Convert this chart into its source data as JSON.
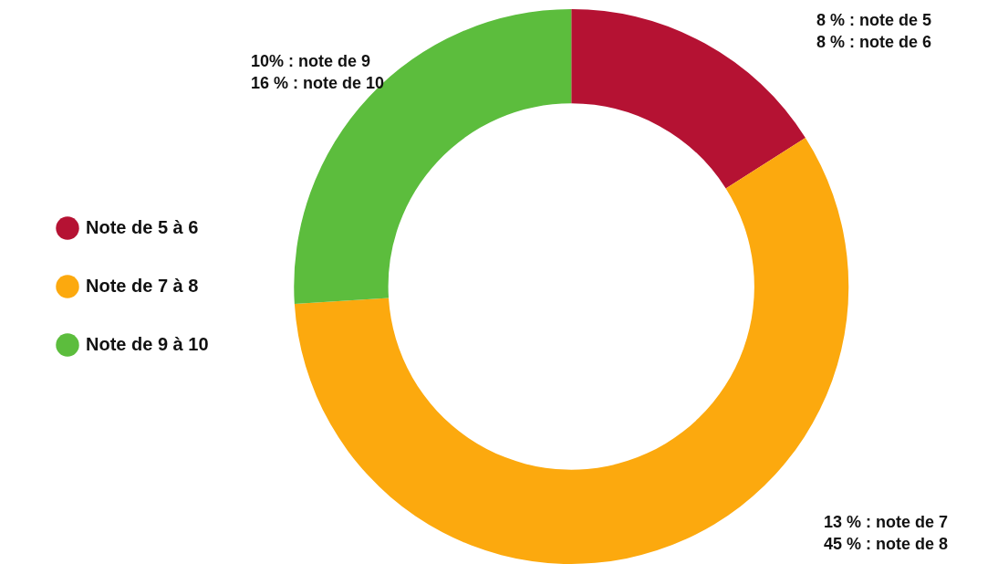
{
  "chart_data": {
    "type": "donut",
    "categories": [
      "Note de 5 à 6",
      "Note de 7 à 8",
      "Note de 9 à 10"
    ],
    "values": [
      16,
      58,
      26
    ],
    "colors": [
      "#b51233",
      "#fca90e",
      "#5cbd3d"
    ],
    "legend": "left",
    "annotations": [
      "8 % : note de 5",
      "8 % : note de 6",
      "13 % : note de 7",
      "45 % : note de 8",
      "10% : note de 9",
      "16 % : note de 10"
    ]
  }
}
